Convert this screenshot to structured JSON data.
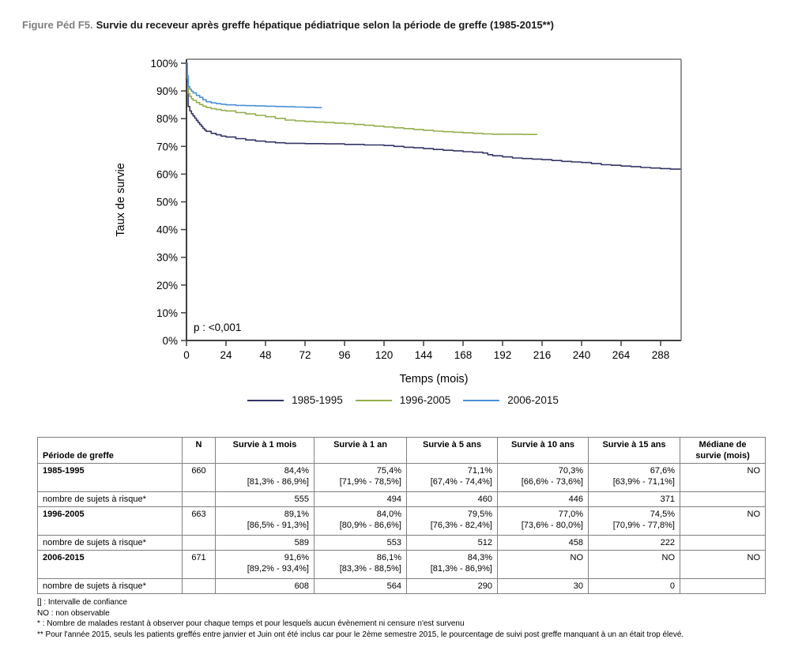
{
  "title": {
    "prefix": "Figure Péd F5.",
    "text": "Survie du receveur après greffe hépatique pédiatrique selon la période de greffe (1985-2015**)"
  },
  "chart_data": {
    "type": "line",
    "subtype": "kaplan-meier-step",
    "xlabel": "Temps (mois)",
    "ylabel": "Taux de survie",
    "annotation": "p : <0,001",
    "xlim": [
      0,
      300
    ],
    "ylim": [
      0,
      100
    ],
    "xticks": [
      0,
      24,
      48,
      72,
      96,
      120,
      144,
      168,
      192,
      216,
      240,
      264,
      288
    ],
    "yticks": [
      0,
      10,
      20,
      30,
      40,
      50,
      60,
      70,
      80,
      90,
      100
    ],
    "ytick_suffix": "%",
    "grid": false,
    "legend_position": "bottom",
    "series": [
      {
        "name": "1985-1995",
        "color": "#333366",
        "points": [
          [
            0,
            100
          ],
          [
            0.5,
            93
          ],
          [
            1,
            84.4
          ],
          [
            2,
            82.8
          ],
          [
            3,
            81.8
          ],
          [
            4,
            81.0
          ],
          [
            5,
            80.2
          ],
          [
            6,
            79.4
          ],
          [
            7,
            78.6
          ],
          [
            8,
            77.9
          ],
          [
            9,
            77.2
          ],
          [
            10,
            76.5
          ],
          [
            11,
            75.9
          ],
          [
            12,
            75.4
          ],
          [
            15,
            74.7
          ],
          [
            18,
            74.2
          ],
          [
            21,
            73.7
          ],
          [
            24,
            73.4
          ],
          [
            30,
            72.8
          ],
          [
            36,
            72.3
          ],
          [
            42,
            71.9
          ],
          [
            48,
            71.6
          ],
          [
            54,
            71.3
          ],
          [
            60,
            71.1
          ],
          [
            72,
            71.0
          ],
          [
            84,
            70.9
          ],
          [
            96,
            70.7
          ],
          [
            108,
            70.5
          ],
          [
            120,
            70.3
          ],
          [
            126,
            70.0
          ],
          [
            132,
            69.7
          ],
          [
            138,
            69.5
          ],
          [
            144,
            69.2
          ],
          [
            150,
            68.9
          ],
          [
            156,
            68.6
          ],
          [
            162,
            68.4
          ],
          [
            168,
            68.1
          ],
          [
            174,
            67.9
          ],
          [
            180,
            67.6
          ],
          [
            183,
            67.0
          ],
          [
            186,
            66.6
          ],
          [
            192,
            66.2
          ],
          [
            198,
            65.8
          ],
          [
            204,
            65.6
          ],
          [
            210,
            65.4
          ],
          [
            216,
            65.2
          ],
          [
            222,
            64.9
          ],
          [
            228,
            64.6
          ],
          [
            234,
            64.4
          ],
          [
            240,
            64.2
          ],
          [
            246,
            63.8
          ],
          [
            252,
            63.4
          ],
          [
            258,
            63.2
          ],
          [
            264,
            62.9
          ],
          [
            270,
            62.7
          ],
          [
            276,
            62.4
          ],
          [
            282,
            62.2
          ],
          [
            288,
            62.0
          ],
          [
            294,
            61.8
          ],
          [
            300,
            61.6
          ]
        ]
      },
      {
        "name": "1996-2005",
        "color": "#94AD4A",
        "points": [
          [
            0,
            100
          ],
          [
            0.5,
            94.5
          ],
          [
            1,
            89.1
          ],
          [
            2,
            88.0
          ],
          [
            3,
            87.2
          ],
          [
            4,
            86.6
          ],
          [
            6,
            85.8
          ],
          [
            8,
            85.1
          ],
          [
            10,
            84.5
          ],
          [
            12,
            84.0
          ],
          [
            15,
            83.6
          ],
          [
            18,
            83.3
          ],
          [
            21,
            83.0
          ],
          [
            24,
            82.8
          ],
          [
            30,
            82.2
          ],
          [
            36,
            81.7
          ],
          [
            42,
            81.2
          ],
          [
            48,
            80.7
          ],
          [
            54,
            80.1
          ],
          [
            60,
            79.5
          ],
          [
            66,
            79.2
          ],
          [
            72,
            79.0
          ],
          [
            78,
            78.8
          ],
          [
            84,
            78.6
          ],
          [
            90,
            78.4
          ],
          [
            96,
            78.2
          ],
          [
            102,
            77.9
          ],
          [
            108,
            77.6
          ],
          [
            114,
            77.3
          ],
          [
            120,
            77.0
          ],
          [
            126,
            76.7
          ],
          [
            132,
            76.4
          ],
          [
            138,
            76.1
          ],
          [
            144,
            75.8
          ],
          [
            150,
            75.5
          ],
          [
            156,
            75.3
          ],
          [
            162,
            75.1
          ],
          [
            168,
            74.9
          ],
          [
            174,
            74.7
          ],
          [
            180,
            74.5
          ],
          [
            186,
            74.4
          ],
          [
            196,
            74.4
          ],
          [
            204,
            74.3
          ],
          [
            213,
            74.3
          ]
        ]
      },
      {
        "name": "2006-2015",
        "color": "#4A90D9",
        "points": [
          [
            0,
            100
          ],
          [
            0.5,
            95.5
          ],
          [
            1,
            91.6
          ],
          [
            2,
            90.6
          ],
          [
            3,
            89.9
          ],
          [
            4,
            89.3
          ],
          [
            6,
            88.4
          ],
          [
            8,
            87.7
          ],
          [
            10,
            86.8
          ],
          [
            12,
            86.1
          ],
          [
            15,
            85.7
          ],
          [
            18,
            85.4
          ],
          [
            21,
            85.2
          ],
          [
            24,
            85.0
          ],
          [
            30,
            84.8
          ],
          [
            36,
            84.7
          ],
          [
            42,
            84.6
          ],
          [
            48,
            84.5
          ],
          [
            54,
            84.4
          ],
          [
            60,
            84.3
          ],
          [
            66,
            84.2
          ],
          [
            72,
            84.1
          ],
          [
            78,
            84.0
          ],
          [
            82,
            83.9
          ]
        ]
      }
    ]
  },
  "table": {
    "columns": [
      "Période de greffe",
      "N",
      "Survie à 1 mois",
      "Survie à 1 an",
      "Survie à 5 ans",
      "Survie à 10 ans",
      "Survie à 15 ans",
      "Médiane de survie (mois)"
    ],
    "rows": [
      {
        "type": "period",
        "label": "1985-1995",
        "n": "660",
        "cells": [
          [
            "84,4%",
            "[81,3% - 86,9%]"
          ],
          [
            "75,4%",
            "[71,9% - 78,5%]"
          ],
          [
            "71,1%",
            "[67,4% - 74,4%]"
          ],
          [
            "70,3%",
            "[66,6% - 73,6%]"
          ],
          [
            "67,6%",
            "[63,9% - 71,1%]"
          ]
        ],
        "median": "NO"
      },
      {
        "type": "risk",
        "label": "nombre de sujets à risque*",
        "values": [
          "555",
          "494",
          "460",
          "446",
          "371"
        ],
        "median": ""
      },
      {
        "type": "period",
        "label": "1996-2005",
        "n": "663",
        "cells": [
          [
            "89,1%",
            "[86,5% - 91,3%]"
          ],
          [
            "84,0%",
            "[80,9% - 86,6%]"
          ],
          [
            "79,5%",
            "[76,3% - 82,4%]"
          ],
          [
            "77,0%",
            "[73,6% - 80,0%]"
          ],
          [
            "74,5%",
            "[70,9% - 77,8%]"
          ]
        ],
        "median": "NO"
      },
      {
        "type": "risk",
        "label": "nombre de sujets à risque*",
        "values": [
          "589",
          "553",
          "512",
          "458",
          "222"
        ],
        "median": ""
      },
      {
        "type": "period",
        "label": "2006-2015",
        "n": "671",
        "cells": [
          [
            "91,6%",
            "[89,2% - 93,4%]"
          ],
          [
            "86,1%",
            "[83,3% - 88,5%]"
          ],
          [
            "84,3%",
            "[81,3% - 86,9%]"
          ],
          [
            "NO",
            ""
          ],
          [
            "NO",
            ""
          ]
        ],
        "median": "NO"
      },
      {
        "type": "risk",
        "label": "nombre de sujets à risque*",
        "values": [
          "608",
          "564",
          "290",
          "30",
          "0"
        ],
        "median": ""
      }
    ]
  },
  "footnotes": [
    "[] : Intervalle de confiance",
    "NO : non observable",
    "* : Nombre de malades restant à observer pour chaque temps et pour lesquels aucun évènement ni censure n'est survenu",
    "** Pour l'année 2015, seuls les patients greffés entre janvier et Juin ont été inclus car pour le 2ème semestre 2015, le pourcentage de suivi post greffe manquant à un an était trop élevé."
  ]
}
